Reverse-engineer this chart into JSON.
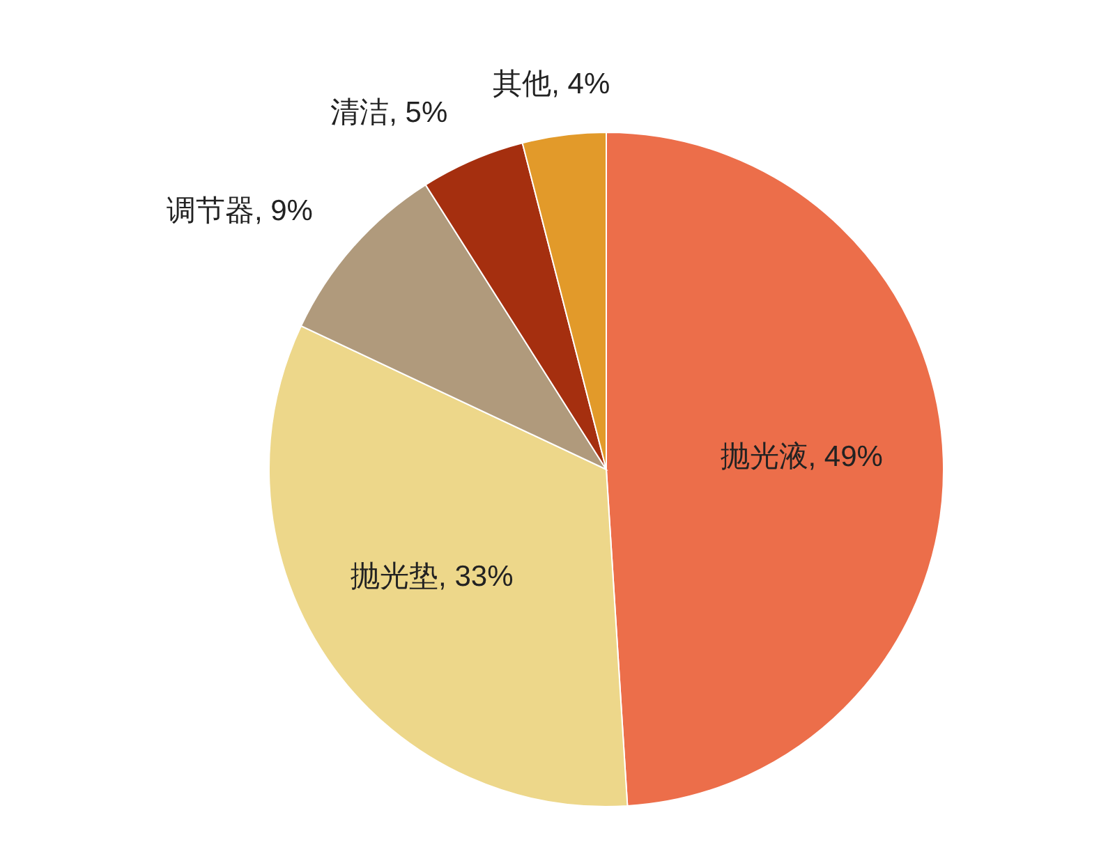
{
  "chart_data": {
    "type": "pie",
    "categories": [
      "抛光液",
      "抛光垫",
      "调节器",
      "清洁",
      "其他"
    ],
    "values": [
      49,
      33,
      9,
      5,
      4
    ],
    "colors": [
      "#ec6e4a",
      "#edd78a",
      "#b09a7c",
      "#a52f0f",
      "#e29a2a"
    ],
    "value_labels": [
      ", 49%",
      ", 33%",
      ", 9%",
      ", 5%",
      ", 4%"
    ]
  }
}
